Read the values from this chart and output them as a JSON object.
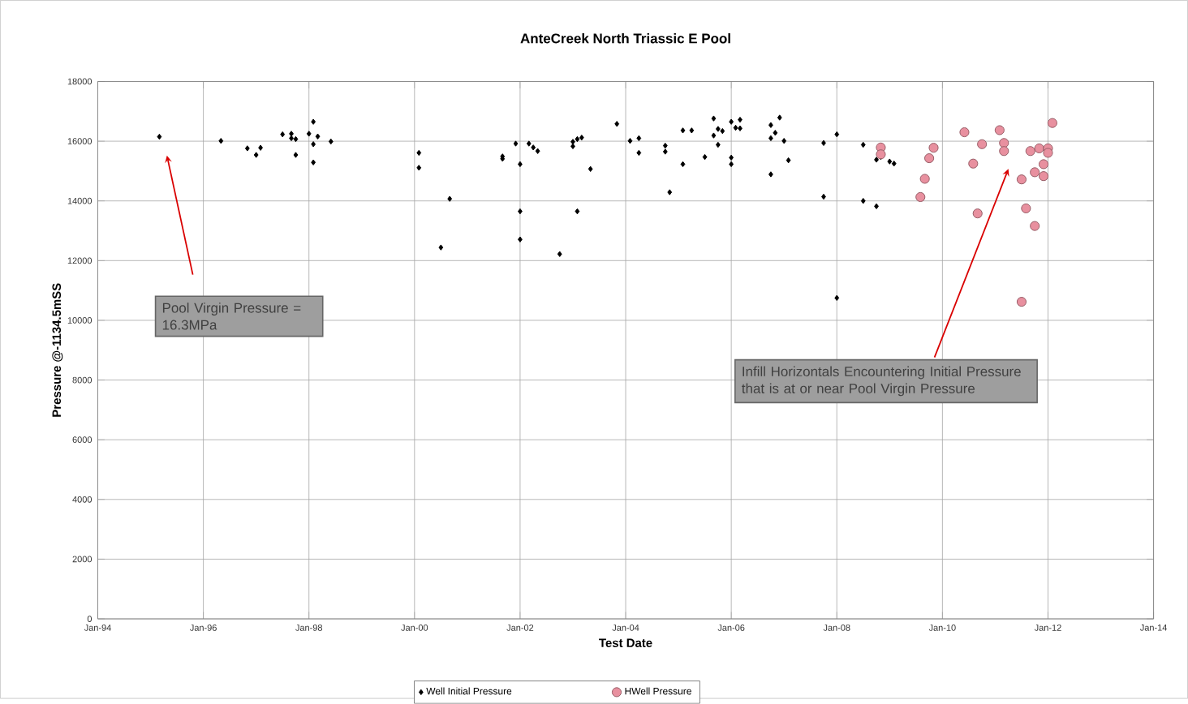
{
  "chart_data": {
    "type": "scatter",
    "title": "AnteCreek North Triassic E Pool",
    "xlabel": "Test Date",
    "ylabel": "Pressure @-1134.5mSS",
    "xlim": [
      "1994-01",
      "2014-01"
    ],
    "xticks": [
      {
        "value": "1994-01",
        "label": "Jan-94"
      },
      {
        "value": "1996-01",
        "label": "Jan-96"
      },
      {
        "value": "1998-01",
        "label": "Jan-98"
      },
      {
        "value": "2000-01",
        "label": "Jan-00"
      },
      {
        "value": "2002-01",
        "label": "Jan-02"
      },
      {
        "value": "2004-01",
        "label": "Jan-04"
      },
      {
        "value": "2006-01",
        "label": "Jan-06"
      },
      {
        "value": "2008-01",
        "label": "Jan-08"
      },
      {
        "value": "2010-01",
        "label": "Jan-10"
      },
      {
        "value": "2012-01",
        "label": "Jan-12"
      },
      {
        "value": "2014-01",
        "label": "Jan-14"
      }
    ],
    "ylim": [
      0,
      18000
    ],
    "yticks": [
      0,
      2000,
      4000,
      6000,
      8000,
      10000,
      12000,
      14000,
      16000,
      18000
    ],
    "grid": true,
    "legend": "bottom",
    "series": [
      {
        "name": "Well Initial Pressure",
        "color": "#000000",
        "marker": "diamond",
        "x": [
          "1995-03",
          "1996-05",
          "1996-11",
          "1997-01",
          "1997-02",
          "1997-07",
          "1997-09",
          "1997-09",
          "1997-10",
          "1997-10",
          "1998-02",
          "1998-01",
          "1998-03",
          "1998-02",
          "1998-02",
          "1998-06",
          "2000-02",
          "2000-02",
          "2000-09",
          "2000-07",
          "2001-09",
          "2001-09",
          "2001-12",
          "2002-01",
          "2002-01",
          "2002-01",
          "2002-03",
          "2002-04",
          "2002-05",
          "2002-10",
          "2003-01",
          "2003-01",
          "2003-02",
          "2003-03",
          "2003-02",
          "2003-05",
          "2003-11",
          "2004-02",
          "2004-04",
          "2004-04",
          "2004-10",
          "2004-10",
          "2004-11",
          "2005-02",
          "2005-04",
          "2005-02",
          "2005-07",
          "2005-09",
          "2005-09",
          "2005-10",
          "2005-11",
          "2005-10",
          "2006-01",
          "2006-01",
          "2006-01",
          "2006-02",
          "2006-03",
          "2006-03",
          "2006-10",
          "2006-10",
          "2006-12",
          "2006-11",
          "2006-10",
          "2007-01",
          "2007-02",
          "2007-10",
          "2007-10",
          "2008-01",
          "2008-01",
          "2008-07",
          "2008-07",
          "2008-10",
          "2008-10",
          "2008-11",
          "2009-01",
          "2009-02"
        ],
        "values": [
          16150,
          16010,
          15760,
          15540,
          15780,
          16230,
          16250,
          16100,
          16070,
          15540,
          16650,
          16250,
          16160,
          15900,
          15290,
          15990,
          15610,
          15110,
          14070,
          12440,
          15490,
          15410,
          15920,
          15230,
          13650,
          12710,
          15920,
          15790,
          15670,
          12220,
          15830,
          15980,
          16070,
          16120,
          13650,
          15070,
          16580,
          16010,
          16100,
          15610,
          15850,
          15650,
          14290,
          16360,
          16360,
          15230,
          15470,
          16760,
          16190,
          16410,
          16340,
          15880,
          16650,
          15450,
          15230,
          16450,
          16720,
          16430,
          14890,
          16540,
          16790,
          16280,
          16100,
          16010,
          15360,
          15940,
          14140,
          16230,
          10750,
          15880,
          14000,
          13820,
          15380,
          15470,
          15320,
          15250
        ]
      },
      {
        "name": "HWell Pressure",
        "color": "#e8909f",
        "marker": "circle",
        "x": [
          "2008-11",
          "2008-11",
          "2009-11",
          "2009-10",
          "2009-09",
          "2009-08",
          "2010-06",
          "2010-10",
          "2010-08",
          "2010-09",
          "2011-02",
          "2011-03",
          "2011-03",
          "2011-07",
          "2011-09",
          "2011-11",
          "2012-01",
          "2012-01",
          "2011-10",
          "2011-12",
          "2011-12",
          "2011-08",
          "2011-10",
          "2011-07",
          "2012-02"
        ],
        "values": [
          15790,
          15560,
          15780,
          15430,
          14740,
          14130,
          16300,
          15900,
          15250,
          13580,
          16370,
          15940,
          15670,
          14720,
          15670,
          15760,
          15760,
          15610,
          14960,
          15230,
          14830,
          13750,
          13160,
          10620,
          16610
        ]
      }
    ],
    "annotations": [
      "Pool Virgin Pressure = 16.3MPa",
      "Infill Horizontals Encountering Initial Pressure that is at or near Pool Virgin Pressure"
    ]
  }
}
